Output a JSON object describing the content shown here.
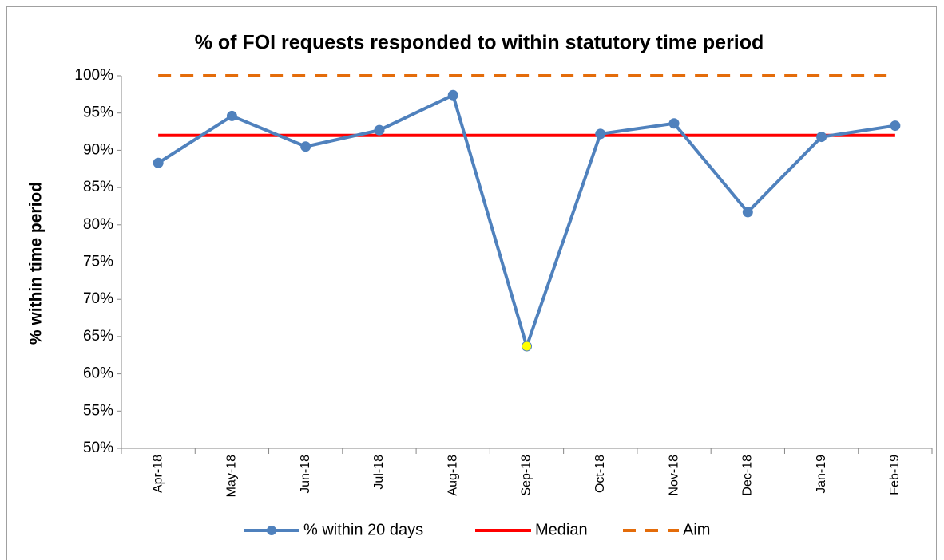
{
  "chart_data": {
    "type": "line",
    "title": "% of FOI requests responded to within statutory time period",
    "ylabel": "% within time period",
    "categories": [
      "Apr-18",
      "May-18",
      "Jun-18",
      "Jul-18",
      "Aug-18",
      "Sep-18",
      "Oct-18",
      "Nov-18",
      "Dec-18",
      "Jan-19",
      "Feb-19"
    ],
    "series": [
      {
        "name": "% within 20 days",
        "color": "#4f81bd",
        "marker": true,
        "marker_colors": [
          "#4f81bd",
          "#4f81bd",
          "#4f81bd",
          "#4f81bd",
          "#4f81bd",
          "#ffff00",
          "#4f81bd",
          "#4f81bd",
          "#4f81bd",
          "#4f81bd",
          "#4f81bd"
        ],
        "values": [
          88.3,
          94.6,
          90.5,
          92.7,
          97.4,
          63.7,
          92.2,
          93.6,
          81.7,
          91.8,
          93.3
        ]
      },
      {
        "name": "Median",
        "color": "#ff0000",
        "marker": false,
        "dash": false,
        "values": [
          92,
          92,
          92,
          92,
          92,
          92,
          92,
          92,
          92,
          92,
          92
        ]
      },
      {
        "name": "Aim",
        "color": "#e46c0a",
        "marker": false,
        "dash": true,
        "values": [
          100,
          100,
          100,
          100,
          100,
          100,
          100,
          100,
          100,
          100,
          100
        ]
      }
    ],
    "ylim": [
      50,
      100
    ],
    "yticks": [
      {
        "value": 50,
        "label": "50%"
      },
      {
        "value": 55,
        "label": "55%"
      },
      {
        "value": 60,
        "label": "60%"
      },
      {
        "value": 65,
        "label": "65%"
      },
      {
        "value": 70,
        "label": "70%"
      },
      {
        "value": 75,
        "label": "75%"
      },
      {
        "value": 80,
        "label": "80%"
      },
      {
        "value": 85,
        "label": "85%"
      },
      {
        "value": 90,
        "label": "90%"
      },
      {
        "value": 95,
        "label": "95%"
      },
      {
        "value": 100,
        "label": "100%"
      }
    ],
    "grid": false,
    "legend": "bottom"
  }
}
